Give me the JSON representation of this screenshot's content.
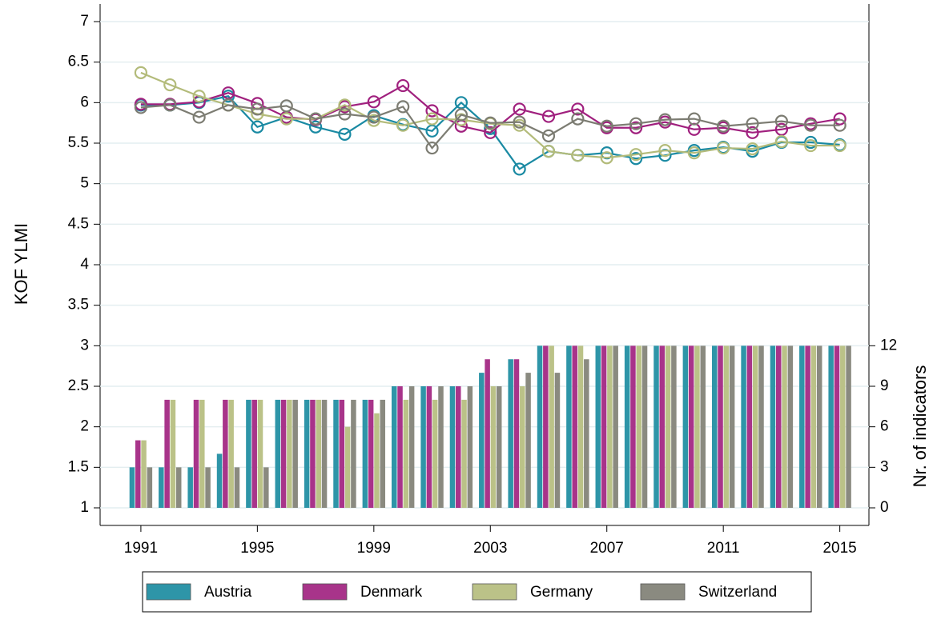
{
  "chart_data": {
    "type": "combo",
    "y_label": "KOF YLMI",
    "y2_label": "Nr. of indicators",
    "x": [
      1991,
      1992,
      1993,
      1994,
      1995,
      1996,
      1997,
      1998,
      1999,
      2000,
      2001,
      2002,
      2003,
      2004,
      2005,
      2006,
      2007,
      2008,
      2009,
      2010,
      2011,
      2012,
      2013,
      2014,
      2015
    ],
    "xlim": [
      1989.6,
      2016
    ],
    "xticks": [
      1991,
      1995,
      1999,
      2003,
      2007,
      2011,
      2015
    ],
    "ylim": [
      1,
      7
    ],
    "yticks": [
      1,
      1.5,
      2,
      2.5,
      3,
      3.5,
      4,
      4.5,
      5,
      5.5,
      6,
      6.5,
      7
    ],
    "y2lim": [
      0,
      36
    ],
    "y2ticks": [
      0,
      3,
      6,
      9,
      12
    ],
    "grid": true,
    "legend": "bottom",
    "series": [
      {
        "name": "Austria",
        "color": "#1a8aa3",
        "bar_color": "#2e95a8",
        "values": [
          5.97,
          5.97,
          6.0,
          6.08,
          5.7,
          5.82,
          5.7,
          5.61,
          5.84,
          5.73,
          5.65,
          6.0,
          5.68,
          5.18,
          5.4,
          5.35,
          5.38,
          5.31,
          5.35,
          5.41,
          5.45,
          5.4,
          5.51,
          5.51,
          5.48
        ],
        "indicators": [
          3,
          3,
          3,
          4,
          8,
          8,
          8,
          8,
          8,
          9,
          9,
          9,
          10,
          11,
          12,
          12,
          12,
          12,
          12,
          12,
          12,
          12,
          12,
          12,
          12
        ]
      },
      {
        "name": "Denmark",
        "color": "#a0207e",
        "bar_color": "#a8348a",
        "values": [
          5.98,
          5.98,
          6.01,
          6.12,
          5.99,
          5.82,
          5.79,
          5.95,
          6.01,
          6.21,
          5.9,
          5.71,
          5.63,
          5.92,
          5.83,
          5.92,
          5.69,
          5.69,
          5.76,
          5.67,
          5.69,
          5.63,
          5.67,
          5.74,
          5.8
        ],
        "indicators": [
          5,
          8,
          8,
          8,
          8,
          8,
          8,
          8,
          8,
          9,
          9,
          9,
          11,
          11,
          12,
          12,
          12,
          12,
          12,
          12,
          12,
          12,
          12,
          12,
          12
        ]
      },
      {
        "name": "Germany",
        "color": "#b3bb7a",
        "bar_color": "#bbc288",
        "values": [
          6.37,
          6.22,
          6.08,
          5.97,
          5.86,
          5.8,
          5.8,
          5.97,
          5.78,
          5.72,
          5.8,
          5.79,
          5.74,
          5.72,
          5.4,
          5.35,
          5.32,
          5.36,
          5.41,
          5.38,
          5.44,
          5.43,
          5.52,
          5.47,
          5.47
        ],
        "indicators": [
          5,
          8,
          8,
          8,
          8,
          8,
          8,
          6,
          7,
          8,
          8,
          8,
          9,
          9,
          12,
          12,
          12,
          12,
          12,
          12,
          12,
          12,
          12,
          12,
          12
        ]
      },
      {
        "name": "Switzerland",
        "color": "#7c7c72",
        "bar_color": "#8a8a80",
        "values": [
          5.94,
          5.97,
          5.82,
          5.97,
          5.92,
          5.96,
          5.8,
          5.86,
          5.82,
          5.95,
          5.44,
          5.85,
          5.75,
          5.76,
          5.59,
          5.8,
          5.71,
          5.74,
          5.79,
          5.8,
          5.71,
          5.74,
          5.77,
          5.72,
          5.72
        ],
        "indicators": [
          3,
          3,
          3,
          3,
          3,
          8,
          8,
          8,
          8,
          9,
          9,
          9,
          9,
          10,
          10,
          11,
          12,
          12,
          12,
          12,
          12,
          12,
          12,
          12,
          12
        ]
      }
    ]
  }
}
